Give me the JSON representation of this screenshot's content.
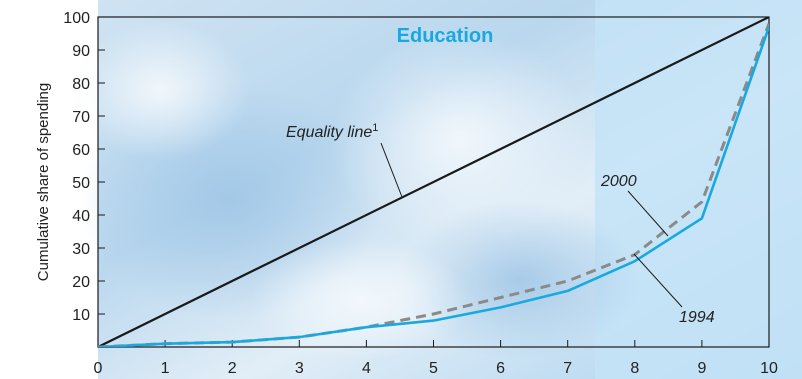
{
  "chart_data": {
    "type": "line",
    "title": "Education",
    "xlabel": "",
    "ylabel": "Cumulative share of spending",
    "xlim": [
      0,
      10
    ],
    "ylim": [
      0,
      100
    ],
    "x_ticks": [
      0,
      1,
      2,
      3,
      4,
      5,
      6,
      7,
      8,
      9,
      10
    ],
    "y_ticks": [
      10,
      20,
      30,
      40,
      50,
      60,
      70,
      80,
      90,
      100
    ],
    "grid": false,
    "legend": "none",
    "series": [
      {
        "name": "Equality line",
        "label_superscript": "1",
        "style": "solid",
        "color": "#1a1a1a",
        "x": [
          0,
          10
        ],
        "y": [
          0,
          100
        ]
      },
      {
        "name": "2000",
        "style": "dashed",
        "color": "#8a8a8a",
        "x": [
          0,
          1,
          2,
          3,
          4,
          5,
          6,
          7,
          8,
          9,
          10
        ],
        "y": [
          0,
          1,
          1.5,
          3,
          6,
          10,
          15,
          20,
          28,
          44,
          98
        ]
      },
      {
        "name": "1994",
        "style": "solid",
        "color": "#19a9e0",
        "x": [
          0,
          1,
          2,
          3,
          4,
          5,
          6,
          7,
          8,
          9,
          10
        ],
        "y": [
          0,
          1,
          1.5,
          3,
          6,
          8,
          12,
          17,
          26,
          39,
          97
        ]
      }
    ]
  }
}
